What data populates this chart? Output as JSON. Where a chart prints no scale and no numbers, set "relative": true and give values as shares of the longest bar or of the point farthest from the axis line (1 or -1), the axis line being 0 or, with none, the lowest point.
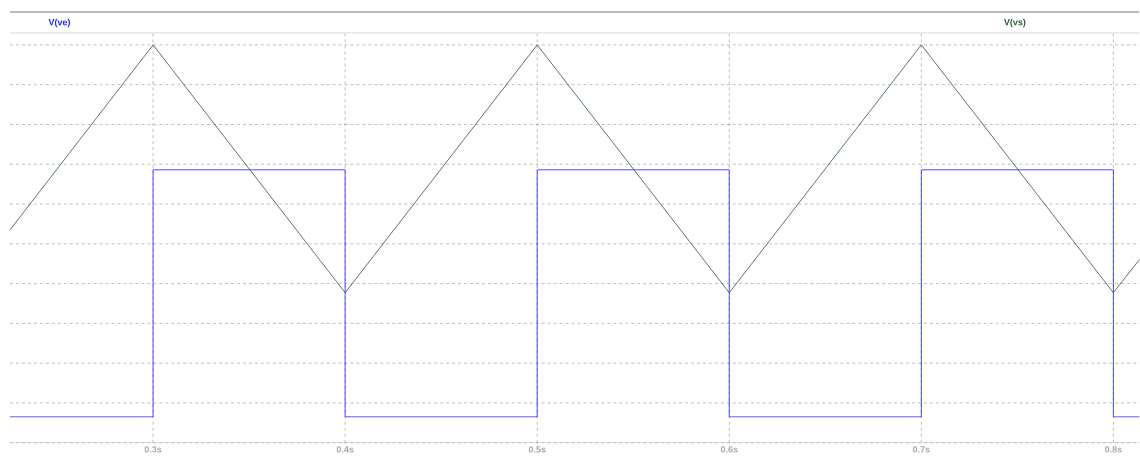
{
  "chart_data": {
    "type": "line",
    "relative": true,
    "grid": true,
    "tick_labels": "x",
    "xlim": [
      0.2255,
      0.8135
    ],
    "xticks": [
      {
        "value": 0.3,
        "label": "0.3s"
      },
      {
        "value": 0.4,
        "label": "0.4s"
      },
      {
        "value": 0.5,
        "label": "0.5s"
      },
      {
        "value": 0.6,
        "label": "0.6s"
      },
      {
        "value": 0.7,
        "label": "0.7s"
      },
      {
        "value": 0.8,
        "label": "0.8s"
      }
    ],
    "series": [
      {
        "name": "V(ve)",
        "type": "step",
        "color": "#2020ff",
        "x": [
          0.2255,
          0.3,
          0.4,
          0.5,
          0.6,
          0.7,
          0.8,
          0.8135
        ],
        "values": [
          0.065,
          0.686,
          0.065,
          0.686,
          0.065,
          0.686,
          0.065,
          0.065
        ]
      },
      {
        "name": "V(vs)",
        "type": "line",
        "color": "#2d5a2d",
        "x": [
          0.2255,
          0.3,
          0.4,
          0.5,
          0.6,
          0.7,
          0.8,
          0.8135
        ],
        "values": [
          0.535,
          1,
          0.377,
          1,
          0.377,
          1,
          0.377,
          0.46
        ]
      }
    ]
  }
}
